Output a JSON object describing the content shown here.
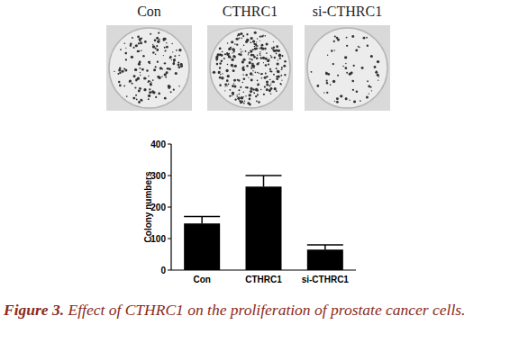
{
  "chart_data": {
    "type": "bar",
    "categories": [
      "Con",
      "CTHRC1",
      "si-CTHRC1"
    ],
    "values": [
      148,
      265,
      65
    ],
    "errors": [
      22,
      35,
      15
    ],
    "color": "#000000",
    "y_label": "Colony numbers",
    "ylim": [
      0,
      400
    ],
    "yticks": [
      0,
      100,
      200,
      300,
      400
    ]
  },
  "plates": {
    "labels": [
      "Con",
      "CTHRC1",
      "si-CTHRC1"
    ]
  },
  "caption": {
    "label": "Figure 3.",
    "text": "Effect of CTHRC1 on the proliferation of prostate cancer cells."
  }
}
